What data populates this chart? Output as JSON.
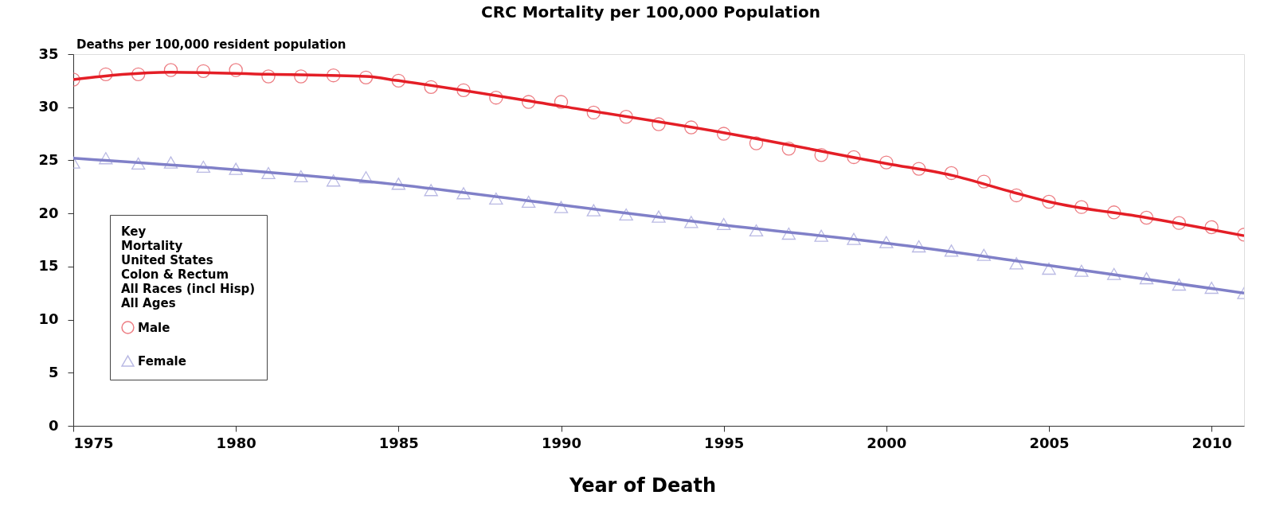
{
  "chart_data": {
    "type": "line",
    "title": "CRC Mortality per 100,000 Population",
    "xlabel": "Year of Death",
    "ylabel": "Deaths per 100,000 resident population",
    "legend_title": "Key",
    "legend": "bottom left",
    "annotations": [
      "Mortality",
      "United States",
      "Colon & Rectum",
      "All Races (incl Hisp)",
      "All Ages"
    ],
    "x": [
      1975,
      1976,
      1977,
      1978,
      1979,
      1980,
      1981,
      1982,
      1983,
      1984,
      1985,
      1986,
      1987,
      1988,
      1989,
      1990,
      1991,
      1992,
      1993,
      1994,
      1995,
      1996,
      1997,
      1998,
      1999,
      2000,
      2001,
      2002,
      2003,
      2004,
      2005,
      2006,
      2007,
      2008,
      2009,
      2010,
      2011
    ],
    "xlim": [
      1975,
      2011
    ],
    "xticks": [
      1975,
      1980,
      1985,
      1990,
      1995,
      2000,
      2005,
      2010
    ],
    "ylim": [
      0,
      35
    ],
    "yticks": [
      0,
      5,
      10,
      15,
      20,
      25,
      30,
      35
    ],
    "grid": false,
    "series": [
      {
        "name": "Male",
        "type": "scatter",
        "marker": "circle",
        "color": "#e5474f",
        "values": [
          32.6,
          33.1,
          33.1,
          33.5,
          33.4,
          33.5,
          32.9,
          32.9,
          33.0,
          32.8,
          32.5,
          31.9,
          31.6,
          30.9,
          30.5,
          30.5,
          29.5,
          29.1,
          28.4,
          28.1,
          27.5,
          26.6,
          26.1,
          25.5,
          25.3,
          24.8,
          24.2,
          23.8,
          23.0,
          21.7,
          21.1,
          20.6,
          20.1,
          19.6,
          19.1,
          18.7,
          18.0
        ]
      },
      {
        "color": "#e41e26",
        "x": [
          1975,
          1978,
          1981,
          1984,
          1985,
          1990,
          1995,
          2000,
          2002,
          2004,
          2005,
          2008,
          2011
        ],
        "values": [
          32.6,
          33.3,
          33.1,
          32.9,
          32.5,
          30.1,
          27.6,
          24.7,
          23.6,
          21.9,
          21.1,
          19.6,
          17.9
        ]
      },
      {
        "name": "Female",
        "type": "scatter",
        "marker": "triangle",
        "color": "#9c9cd8",
        "values": [
          24.8,
          25.2,
          24.7,
          24.8,
          24.4,
          24.2,
          23.8,
          23.5,
          23.1,
          23.4,
          22.8,
          22.2,
          21.9,
          21.4,
          21.1,
          20.6,
          20.3,
          19.9,
          19.7,
          19.2,
          19.0,
          18.4,
          18.1,
          17.9,
          17.6,
          17.3,
          16.9,
          16.5,
          16.1,
          15.3,
          14.8,
          14.6,
          14.3,
          13.9,
          13.3,
          13.0,
          12.5
        ]
      },
      {
        "color": "#8080c8",
        "x": [
          1975,
          1985,
          1990,
          1995,
          2000,
          2005,
          2011
        ],
        "values": [
          25.2,
          22.7,
          20.8,
          18.9,
          17.2,
          15.1,
          12.5
        ]
      }
    ]
  }
}
